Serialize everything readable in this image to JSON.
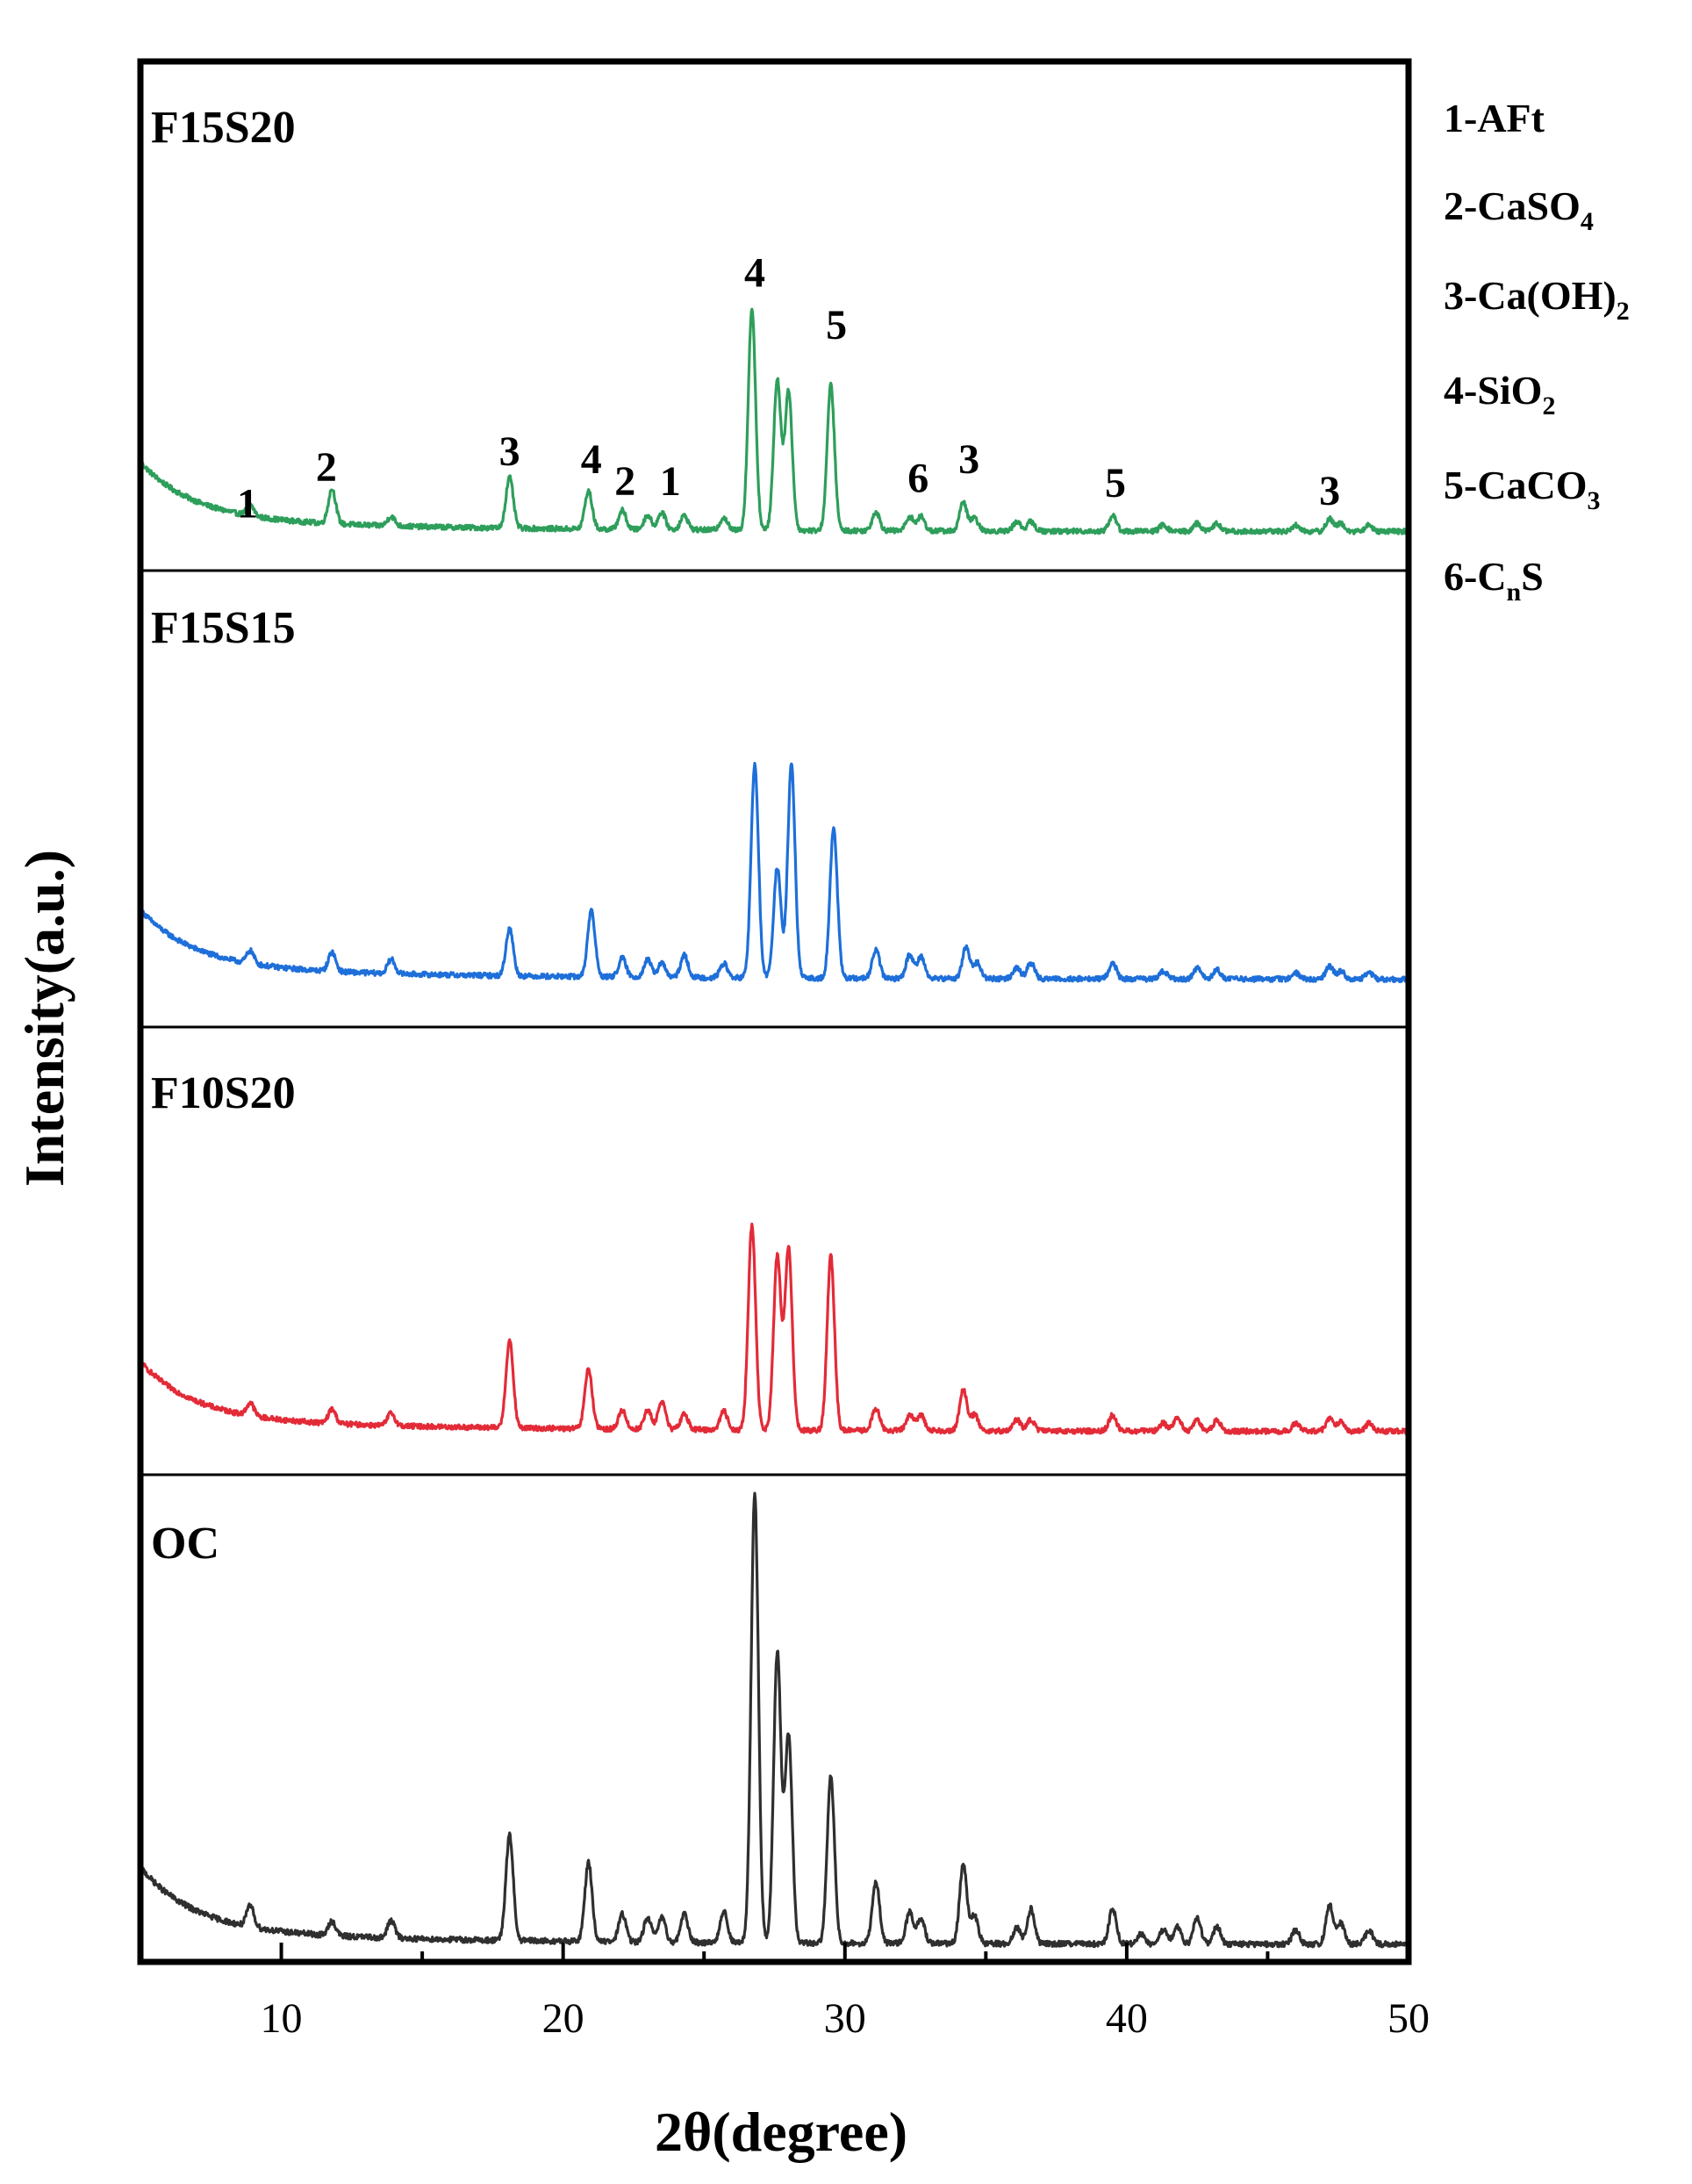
{
  "chart_data": {
    "type": "line",
    "xlabel": "2θ(degree)",
    "ylabel": "Intensity(a.u.)",
    "xlim": [
      5,
      50
    ],
    "xticks": [
      10,
      20,
      30,
      40,
      50
    ],
    "grid": false,
    "legend_position": "right",
    "legend": [
      {
        "num": "1-",
        "main": "AFt",
        "sub": ""
      },
      {
        "num": "2-",
        "main": "CaSO",
        "sub": "4"
      },
      {
        "num": "3-",
        "main": "Ca(OH)",
        "sub": "2"
      },
      {
        "num": "4-",
        "main": "SiO",
        "sub": "2"
      },
      {
        "num": "5-",
        "main": "CaCO",
        "sub": "3"
      },
      {
        "num": "6-",
        "main": "C",
        "sub": "n",
        "tail": "S"
      }
    ],
    "series": [
      {
        "name": "F15S20",
        "color": "#2e9e5b",
        "baseline": 8,
        "peaks": [
          [
            8.9,
            7
          ],
          [
            11.8,
            22
          ],
          [
            13.9,
            6
          ],
          [
            18.1,
            32
          ],
          [
            20.9,
            24
          ],
          [
            22.1,
            12
          ],
          [
            23.0,
            9
          ],
          [
            23.5,
            11
          ],
          [
            24.3,
            9
          ],
          [
            25.7,
            8
          ],
          [
            26.7,
            140
          ],
          [
            27.6,
            95
          ],
          [
            28.0,
            88
          ],
          [
            29.5,
            92
          ],
          [
            31.1,
            12
          ],
          [
            32.3,
            9
          ],
          [
            32.7,
            9
          ],
          [
            34.2,
            18
          ],
          [
            34.6,
            8
          ],
          [
            36.1,
            6
          ],
          [
            36.6,
            6
          ],
          [
            39.5,
            10
          ],
          [
            41.3,
            4
          ],
          [
            42.5,
            5
          ],
          [
            43.2,
            5
          ],
          [
            46.0,
            4
          ],
          [
            47.2,
            8
          ],
          [
            47.6,
            5
          ],
          [
            48.6,
            4
          ]
        ]
      },
      {
        "name": "F15S15",
        "color": "#1e6fd9",
        "baseline": 8,
        "peaks": [
          [
            8.9,
            8
          ],
          [
            11.8,
            12
          ],
          [
            13.9,
            9
          ],
          [
            18.1,
            30
          ],
          [
            21.0,
            42
          ],
          [
            22.1,
            12
          ],
          [
            23.0,
            11
          ],
          [
            23.5,
            9
          ],
          [
            24.3,
            14
          ],
          [
            25.7,
            9
          ],
          [
            26.8,
            135
          ],
          [
            27.6,
            70
          ],
          [
            28.1,
            135
          ],
          [
            29.6,
            95
          ],
          [
            31.1,
            18
          ],
          [
            32.3,
            15
          ],
          [
            32.7,
            14
          ],
          [
            34.3,
            20
          ],
          [
            34.7,
            10
          ],
          [
            36.1,
            7
          ],
          [
            36.6,
            10
          ],
          [
            39.5,
            10
          ],
          [
            41.3,
            5
          ],
          [
            42.5,
            7
          ],
          [
            43.2,
            6
          ],
          [
            46.0,
            4
          ],
          [
            47.2,
            8
          ],
          [
            47.6,
            5
          ],
          [
            48.6,
            4
          ]
        ]
      },
      {
        "name": "F10S20",
        "color": "#e32b38",
        "baseline": 8,
        "peaks": [
          [
            8.9,
            8
          ],
          [
            11.8,
            9
          ],
          [
            13.9,
            8
          ],
          [
            18.1,
            55
          ],
          [
            20.9,
            38
          ],
          [
            22.1,
            12
          ],
          [
            23.0,
            12
          ],
          [
            23.5,
            18
          ],
          [
            24.3,
            10
          ],
          [
            25.7,
            12
          ],
          [
            26.7,
            130
          ],
          [
            27.6,
            110
          ],
          [
            28.0,
            115
          ],
          [
            29.5,
            110
          ],
          [
            31.1,
            14
          ],
          [
            32.3,
            10
          ],
          [
            32.7,
            10
          ],
          [
            34.2,
            26
          ],
          [
            34.6,
            10
          ],
          [
            36.1,
            7
          ],
          [
            36.6,
            7
          ],
          [
            39.5,
            10
          ],
          [
            41.3,
            5
          ],
          [
            41.8,
            8
          ],
          [
            42.5,
            7
          ],
          [
            43.2,
            7
          ],
          [
            46.0,
            5
          ],
          [
            47.2,
            8
          ],
          [
            47.6,
            6
          ],
          [
            48.6,
            5
          ]
        ]
      },
      {
        "name": "OC",
        "color": "#2f2f2f",
        "baseline": 5,
        "peaks": [
          [
            8.9,
            12
          ],
          [
            11.8,
            8
          ],
          [
            13.9,
            10
          ],
          [
            18.1,
            60
          ],
          [
            20.9,
            45
          ],
          [
            22.1,
            16
          ],
          [
            23.0,
            14
          ],
          [
            23.5,
            14
          ],
          [
            24.3,
            16
          ],
          [
            25.7,
            18
          ],
          [
            26.8,
            255
          ],
          [
            27.6,
            165
          ],
          [
            28.0,
            118
          ],
          [
            29.5,
            95
          ],
          [
            31.1,
            35
          ],
          [
            32.3,
            18
          ],
          [
            32.7,
            14
          ],
          [
            34.2,
            45
          ],
          [
            34.6,
            16
          ],
          [
            36.1,
            9
          ],
          [
            36.6,
            20
          ],
          [
            39.5,
            20
          ],
          [
            40.5,
            6
          ],
          [
            41.3,
            8
          ],
          [
            41.8,
            10
          ],
          [
            42.5,
            15
          ],
          [
            43.2,
            10
          ],
          [
            46.0,
            8
          ],
          [
            47.2,
            22
          ],
          [
            47.6,
            12
          ],
          [
            48.6,
            8
          ]
        ]
      }
    ],
    "annotations": [
      {
        "panel": 0,
        "label": "1",
        "x": 8.8,
        "y": 17
      },
      {
        "panel": 0,
        "label": "2",
        "x": 11.6,
        "y": 40
      },
      {
        "panel": 0,
        "label": "3",
        "x": 18.1,
        "y": 50
      },
      {
        "panel": 0,
        "label": "4",
        "x": 21.0,
        "y": 45
      },
      {
        "panel": 0,
        "label": "2",
        "x": 22.2,
        "y": 31
      },
      {
        "panel": 0,
        "label": "1",
        "x": 23.8,
        "y": 31
      },
      {
        "panel": 0,
        "label": "4",
        "x": 26.8,
        "y": 163
      },
      {
        "panel": 0,
        "label": "5",
        "x": 29.7,
        "y": 130
      },
      {
        "panel": 0,
        "label": "6",
        "x": 32.6,
        "y": 33
      },
      {
        "panel": 0,
        "label": "3",
        "x": 34.4,
        "y": 45
      },
      {
        "panel": 0,
        "label": "5",
        "x": 39.6,
        "y": 30
      },
      {
        "panel": 0,
        "label": "3",
        "x": 47.2,
        "y": 25
      }
    ]
  },
  "panel_labels": [
    "F15S20",
    "F15S15",
    "F10S20",
    "OC"
  ]
}
